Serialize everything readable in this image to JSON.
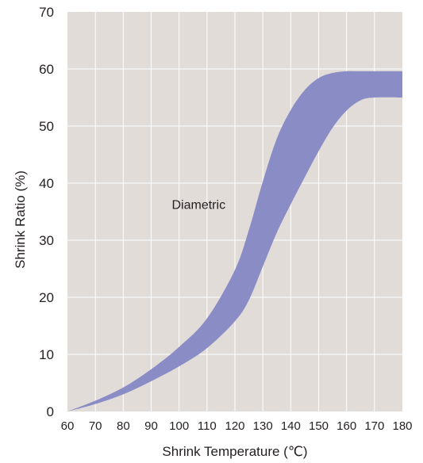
{
  "chart_data": {
    "type": "area",
    "xlabel": "Shrink Temperature (℃)",
    "ylabel": "Shrink Ratio (%)",
    "xlim": [
      60,
      180
    ],
    "ylim": [
      0,
      70
    ],
    "x_ticks": [
      60,
      70,
      80,
      90,
      100,
      110,
      120,
      130,
      140,
      150,
      160,
      170,
      180
    ],
    "y_ticks": [
      0,
      10,
      20,
      30,
      40,
      50,
      60,
      70
    ],
    "grid": true,
    "annotation": {
      "text": "Diametric",
      "x": 107,
      "y": 38
    },
    "colors": {
      "plot_background": "#e2dcd9",
      "gridline": "#ffffff",
      "band_fill": "#8a8cc6"
    },
    "band": {
      "x": [
        60,
        70,
        80,
        90,
        100,
        110,
        120,
        125,
        130,
        135,
        140,
        145,
        150,
        155,
        160,
        165,
        170,
        180
      ],
      "upper": [
        0,
        1.9,
        4.2,
        7.4,
        11.3,
        16.3,
        24.8,
        31.8,
        40.3,
        47.8,
        52.8,
        56.3,
        58.4,
        59.3,
        59.6,
        59.6,
        59.6,
        59.6
      ],
      "lower": [
        0,
        1.3,
        3.0,
        5.3,
        7.9,
        11.1,
        15.8,
        19.5,
        25.4,
        31.3,
        36.3,
        41.0,
        45.6,
        49.7,
        52.7,
        54.5,
        55.0,
        55.0
      ]
    }
  }
}
